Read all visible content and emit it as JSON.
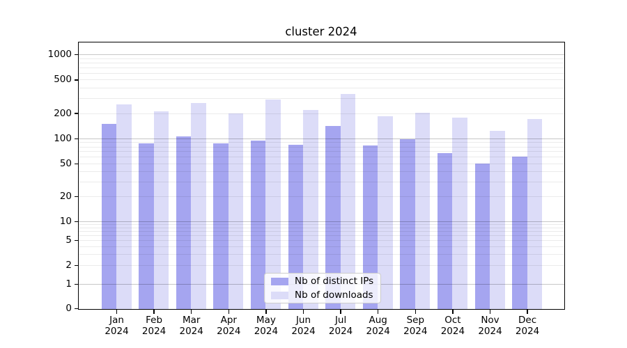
{
  "chart_data": {
    "type": "bar",
    "title": "cluster 2024",
    "x_months": [
      "Jan",
      "Feb",
      "Mar",
      "Apr",
      "May",
      "Jun",
      "Jul",
      "Aug",
      "Sep",
      "Oct",
      "Nov",
      "Dec"
    ],
    "x_year": "2024",
    "series": [
      {
        "name": "Nb of distinct IPs",
        "color": "#a5a5f0",
        "values": [
          150,
          88,
          105,
          87,
          95,
          84,
          140,
          83,
          98,
          66,
          50,
          60
        ]
      },
      {
        "name": "Nb of downloads",
        "color": "#dcdcf8",
        "values": [
          255,
          210,
          265,
          198,
          290,
          218,
          340,
          183,
          204,
          177,
          123,
          170
        ]
      }
    ],
    "y_axis": {
      "scale": "symlog",
      "tick_labels": [
        0,
        1,
        2,
        5,
        10,
        20,
        50,
        100,
        200,
        500,
        1000
      ],
      "ylim": [
        0,
        1400
      ]
    },
    "grid": {
      "major_values": [
        1,
        10,
        100,
        1000
      ],
      "minor_values": [
        2,
        3,
        4,
        5,
        6,
        7,
        8,
        9,
        20,
        30,
        40,
        50,
        60,
        70,
        80,
        90,
        200,
        300,
        400,
        500,
        600,
        700,
        800,
        900
      ],
      "major_color": "#c6c6c6",
      "minor_color": "#ebebeb",
      "drawn_over_bars": true
    },
    "legend": {
      "position": "lower center",
      "background": "#ffffff",
      "border_color": "#cccccc"
    }
  }
}
